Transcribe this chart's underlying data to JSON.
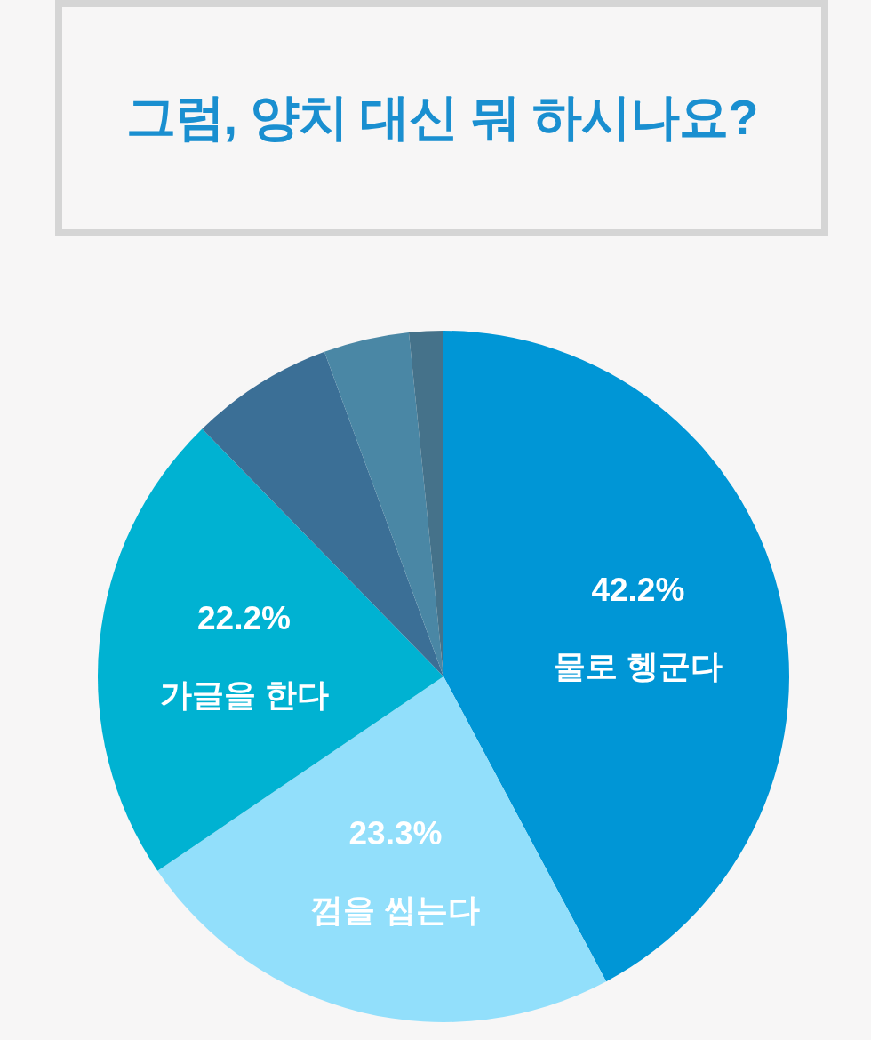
{
  "chart_data": {
    "type": "pie",
    "title": "그럼, 양치 대신 뭐 하시나요?",
    "categories": [
      "물로 헹군다",
      "껌을 씹는다",
      "가글을 한다",
      null,
      null,
      null
    ],
    "values": [
      42.2,
      23.3,
      22.2,
      6.7,
      4.0,
      1.6
    ],
    "colors": [
      "#0096d6",
      "#92dffb",
      "#00b2d2",
      "#3b6f96",
      "#4a87a5",
      "#45728a"
    ],
    "value_labels": [
      "42.2%",
      "23.3%",
      "22.2%",
      null,
      null,
      null
    ]
  }
}
